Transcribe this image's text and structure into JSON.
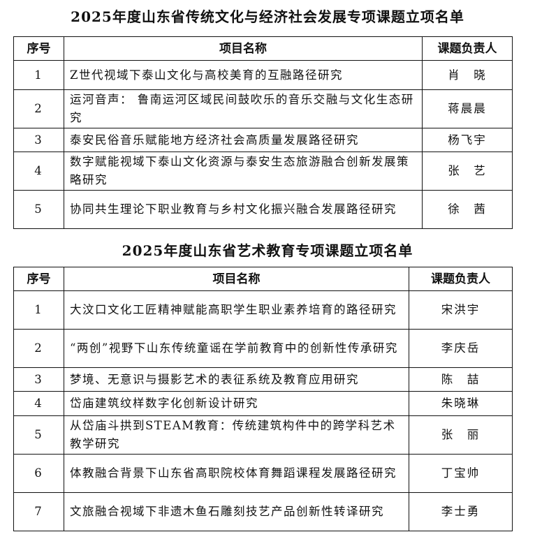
{
  "table1": {
    "title": "2025年度山东省传统文化与经济社会发展专项课题立项名单",
    "headers": [
      "序号",
      "项目名称",
      "课题负责人"
    ],
    "rows": [
      {
        "no": "1",
        "name": "Z世代视域下泰山文化与高校美育的互融路径研究",
        "person": "肖　晓"
      },
      {
        "no": "2",
        "name": "运河音声： 鲁南运河区域民间鼓吹乐的音乐交融与文化生态研究",
        "person": "蒋晨晨"
      },
      {
        "no": "3",
        "name": "泰安民俗音乐赋能地方经济社会高质量发展路径研究",
        "person": "杨飞宇"
      },
      {
        "no": "4",
        "name": "数字赋能视域下泰山文化资源与泰安生态旅游融合创新发展策略研究",
        "person": "张　艺"
      },
      {
        "no": "5",
        "name": "协同共生理论下职业教育与乡村文化振兴融合发展路径研究",
        "person": "徐　茜"
      }
    ]
  },
  "table2": {
    "title": "2025年度山东省艺术教育专项课题立项名单",
    "headers": [
      "序号",
      "项目名称",
      "课题负责人"
    ],
    "rows": [
      {
        "no": "1",
        "name": "大汶口文化工匠精神赋能高职学生职业素养培育的路径研究",
        "person": "宋洪宇"
      },
      {
        "no": "2",
        "name": "“两创”视野下山东传统童谣在学前教育中的创新性传承研究",
        "person": "李庆岳"
      },
      {
        "no": "3",
        "name": "梦境、无意识与摄影艺术的表征系统及教育应用研究",
        "person": "陈　喆"
      },
      {
        "no": "4",
        "name": "岱庙建筑纹样数字化创新设计研究",
        "person": "朱晓琳"
      },
      {
        "no": "5",
        "name": "从岱庙斗拱到STEAM教育：传统建筑构件中的跨学科艺术教学研究",
        "person": "张　丽"
      },
      {
        "no": "6",
        "name": "体教融合背景下山东省高职院校体育舞蹈课程发展路径研究",
        "person": "丁宝帅"
      },
      {
        "no": "7",
        "name": "文旅融合视域下非遗木鱼石雕刻技艺产品创新性转译研究",
        "person": "李士勇"
      }
    ]
  }
}
